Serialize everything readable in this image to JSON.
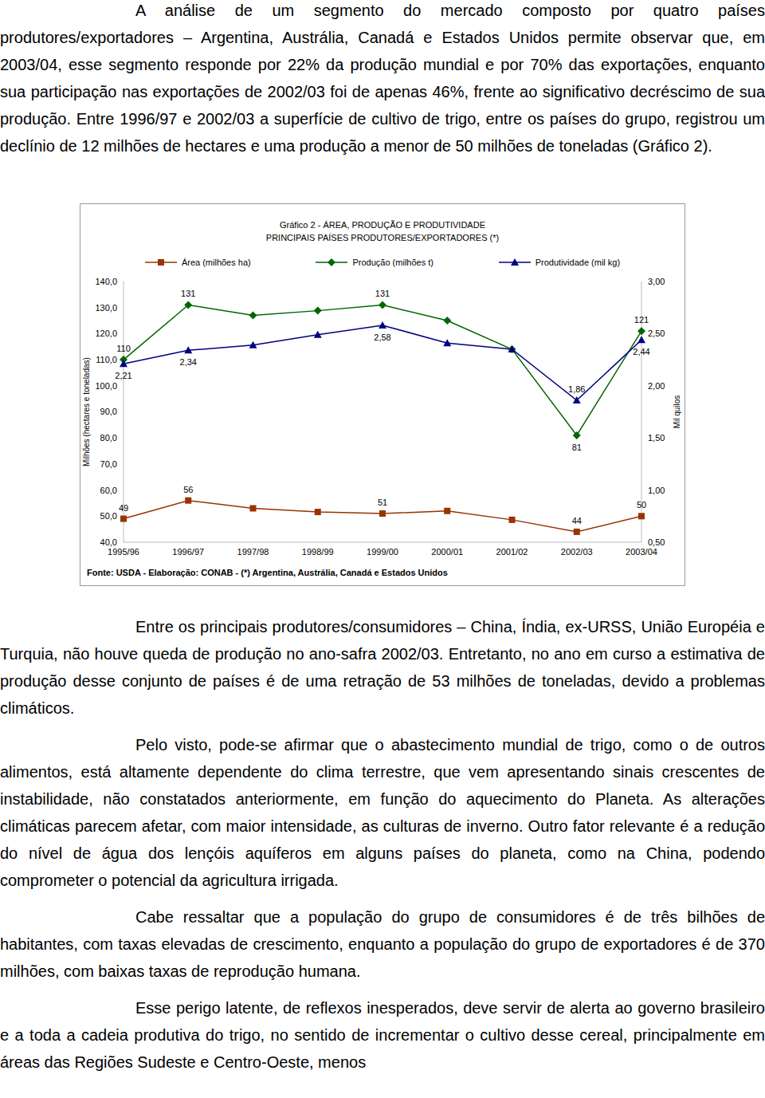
{
  "paragraphs_top": [
    "A análise de um segmento do mercado composto por quatro países produtores/exportadores – Argentina, Austrália, Canadá e Estados Unidos permite observar que, em 2003/04, esse segmento responde por 22% da produção mundial e por 70% das exportações, enquanto sua participação nas exportações de 2002/03 foi de apenas 46%, frente ao significativo decréscimo de sua produção. Entre 1996/97 e 2002/03 a superfície de cultivo de trigo, entre os países do grupo, registrou um declínio de 12 milhões de hectares e uma produção a menor de 50 milhões de toneladas (Gráfico 2)."
  ],
  "chart_data": {
    "type": "line",
    "title": "Gráfico 2 - ÁREA, PRODUÇÃO E PRODUTIVIDADE",
    "subtitle": "PRINCIPAIS PAÍSES PRODUTORES/EXPORTADORES (*)",
    "ylabel": "Milhões (hectares e toneladas)",
    "y2label": "Mil quilos",
    "note": "Fonte: USDA - Elaboração: CONAB - (*) Argentina, Austrália, Canadá e Estados Unidos",
    "categories": [
      "1995/96",
      "1996/97",
      "1997/98",
      "1998/99",
      "1999/00",
      "2000/01",
      "2001/02",
      "2002/03",
      "2003/04"
    ],
    "series": [
      {
        "name": "Área (milhões ha)",
        "color": "#993300",
        "marker": "square",
        "values": [
          49,
          56,
          53,
          51.6,
          51,
          52,
          48.6,
          44,
          50
        ],
        "value_labels": [
          "49",
          "56",
          null,
          null,
          "51",
          null,
          null,
          "44",
          "50"
        ]
      },
      {
        "name": "Produção (milhões t)",
        "color": "#006600",
        "marker": "diamond",
        "values": [
          110,
          131,
          127,
          128.8,
          131,
          125,
          114,
          81,
          121
        ],
        "value_labels": [
          "110",
          "131",
          null,
          null,
          "131",
          null,
          null,
          "81",
          "121"
        ]
      },
      {
        "name": "Produtividade (mil kg)",
        "color": "#000080",
        "marker": "triangle",
        "axis": "y2",
        "values": [
          2.21,
          2.34,
          2.39,
          2.49,
          2.58,
          2.41,
          2.35,
          1.86,
          2.44
        ],
        "value_labels": [
          "2,21",
          "2,34",
          null,
          null,
          "2,58",
          null,
          null,
          "1,86",
          "2,44"
        ]
      }
    ],
    "ylim": [
      40,
      140
    ],
    "yticks": [
      {
        "value": 40,
        "label": "40,0"
      },
      {
        "value": 50,
        "label": "50,0"
      },
      {
        "value": 60,
        "label": "60,0"
      },
      {
        "value": 70,
        "label": "70,0"
      },
      {
        "value": 80,
        "label": "80,0"
      },
      {
        "value": 90,
        "label": "90,0"
      },
      {
        "value": 100,
        "label": "100,0"
      },
      {
        "value": 110,
        "label": "110,0"
      },
      {
        "value": 120,
        "label": "120,0"
      },
      {
        "value": 130,
        "label": "130,0"
      },
      {
        "value": 140,
        "label": "140,0"
      }
    ],
    "y2lim": [
      0.5,
      3
    ],
    "y2ticks": [
      {
        "value": 0.5,
        "label": "0,50"
      },
      {
        "value": 1,
        "label": "1,00"
      },
      {
        "value": 1.5,
        "label": "1,50"
      },
      {
        "value": 2,
        "label": "2,00"
      },
      {
        "value": 2.5,
        "label": "2,50"
      },
      {
        "value": 3,
        "label": "3,00"
      }
    ],
    "grid": false,
    "legend": "top",
    "data_labels": true
  },
  "paragraphs_bottom": [
    "Entre os principais produtores/consumidores – China, Índia, ex-URSS, União Européia e Turquia, não houve queda de produção no ano-safra 2002/03. Entretanto, no ano em curso a estimativa de produção desse conjunto de países é de uma retração de 53 milhões de toneladas, devido a problemas climáticos.",
    "Pelo visto, pode-se afirmar que o abastecimento mundial de trigo, como o de outros alimentos, está altamente dependente do clima terrestre, que vem apresentando sinais crescentes de instabilidade, não constatados anteriormente, em função do aquecimento do Planeta. As alterações climáticas parecem afetar, com maior intensidade, as culturas de inverno. Outro fator relevante é a redução do nível de água dos lençóis aquíferos em alguns países do planeta, como na China, podendo comprometer o potencial da agricultura irrigada.",
    "Cabe ressaltar que a população do grupo de consumidores é de três bilhões de habitantes, com taxas elevadas de crescimento, enquanto a população do grupo de exportadores é de 370 milhões, com baixas taxas de reprodução humana.",
    "Esse perigo latente, de reflexos inesperados, deve servir de alerta ao governo brasileiro e a toda a cadeia produtiva do trigo, no sentido de incrementar o cultivo desse cereal, principalmente em áreas das Regiões Sudeste e Centro-Oeste, menos"
  ]
}
